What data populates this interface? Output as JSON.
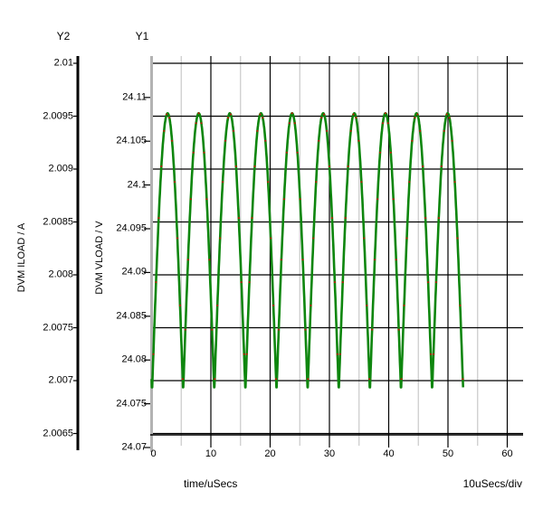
{
  "colors": {
    "background": "#ffffff",
    "major_grid": "#000000",
    "minor_grid": "#c9c9c9",
    "y1_axis_line": "#b3b3b3",
    "y2_axis_line": "#000000",
    "trace": "#0e860e",
    "marker": "#cc1100",
    "text": "#000000"
  },
  "chart_data": {
    "type": "line",
    "title": "",
    "x_axis": {
      "label": "time/uSecs",
      "scale_note": "10uSecs/div",
      "tick_labels": [
        "0",
        "10",
        "20",
        "30",
        "40",
        "50",
        "60"
      ],
      "tick_values": [
        0,
        10,
        20,
        30,
        40,
        50,
        60
      ],
      "minor_step": 5,
      "range": [
        0,
        62.7
      ],
      "grid": "major-and-minor"
    },
    "y1_axis": {
      "name": "Y1",
      "label": "DVM VLOAD / V",
      "tick_labels": [
        "24.11",
        "24.105",
        "24.1",
        "24.095",
        "24.09",
        "24.085",
        "24.08",
        "24.075",
        "24.07"
      ],
      "tick_values": [
        24.11,
        24.105,
        24.1,
        24.095,
        24.09,
        24.085,
        24.08,
        24.075,
        24.07
      ],
      "range": [
        24.07,
        24.11
      ]
    },
    "y2_axis": {
      "name": "Y2",
      "label": "DVM ILOAD / A",
      "tick_labels": [
        "2.01",
        "2.0095",
        "2.009",
        "2.0085",
        "2.008",
        "2.0075",
        "2.007",
        "2.0065"
      ],
      "tick_values": [
        2.01,
        2.0095,
        2.009,
        2.0085,
        2.008,
        2.0075,
        2.007,
        2.0065
      ],
      "range": [
        2.0065,
        2.01
      ]
    },
    "series": [
      {
        "name": "DVM VLOAD",
        "axis": "Y1",
        "color": "#0e860e",
        "marker_color": "#cc1100",
        "waveform": {
          "shape": "abs-cosine-ripple",
          "period_us": 5.25,
          "first_peak_us": 2.7,
          "t_start_us": 0,
          "t_end_us": 52.575,
          "peak_v": 24.1082,
          "trough_v": 24.0764,
          "peaks_at_us": [
            2.7,
            7.95,
            13.2,
            18.45,
            23.7,
            28.95,
            34.2,
            39.45,
            44.7,
            49.95
          ]
        }
      }
    ],
    "legend": "none"
  }
}
